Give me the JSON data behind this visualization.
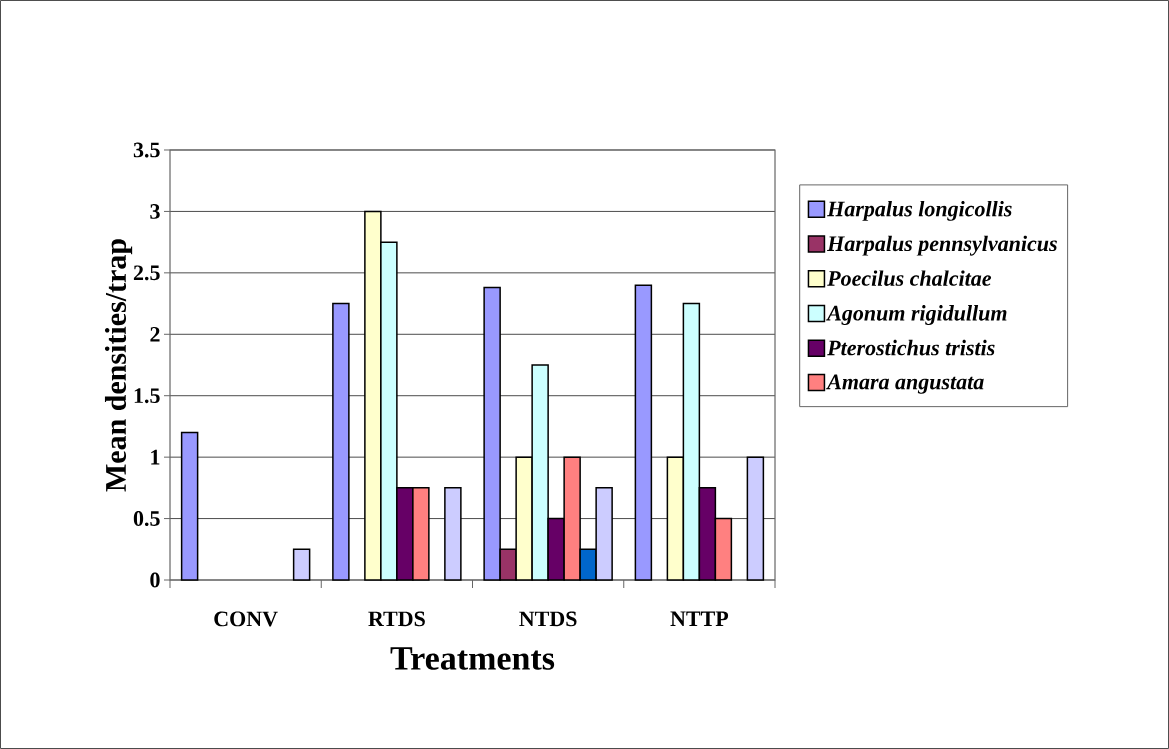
{
  "chart_data": {
    "type": "bar",
    "xlabel": "Treatments",
    "ylabel": "Mean densities/trap",
    "categories": [
      "CONV",
      "RTDS",
      "NTDS",
      "NTTP"
    ],
    "series": [
      {
        "name": "Harpalus longicollis",
        "color": "#9999ff",
        "values": [
          1.2,
          2.25,
          2.38,
          2.4
        ]
      },
      {
        "name": "Harpalus pennsylvanicus",
        "color": "#993366",
        "values": [
          null,
          null,
          0.25,
          null
        ]
      },
      {
        "name": "Poecilus chalcitae",
        "color": "#ffffcc",
        "values": [
          null,
          3,
          1,
          1
        ]
      },
      {
        "name": "Agonum rigidullum",
        "color": "#ccffff",
        "values": [
          null,
          2.75,
          1.75,
          2.25
        ]
      },
      {
        "name": "Pterostichus tristis",
        "color": "#660066",
        "values": [
          null,
          0.75,
          0.5,
          0.75
        ]
      },
      {
        "name": "Amara angustata",
        "color": "#ff8080",
        "values": [
          null,
          0.75,
          1,
          0.5
        ]
      },
      {
        "color": "#0066cc",
        "values": [
          null,
          null,
          0.25,
          null
        ]
      },
      {
        "color": "#ccccff",
        "values": [
          0.25,
          0.75,
          0.75,
          1
        ]
      }
    ],
    "ylim": [
      0,
      3.5
    ],
    "yticks": [
      0,
      0.5,
      1,
      1.5,
      2,
      2.5,
      3,
      3.5
    ],
    "grid": "y",
    "legend": "right"
  }
}
